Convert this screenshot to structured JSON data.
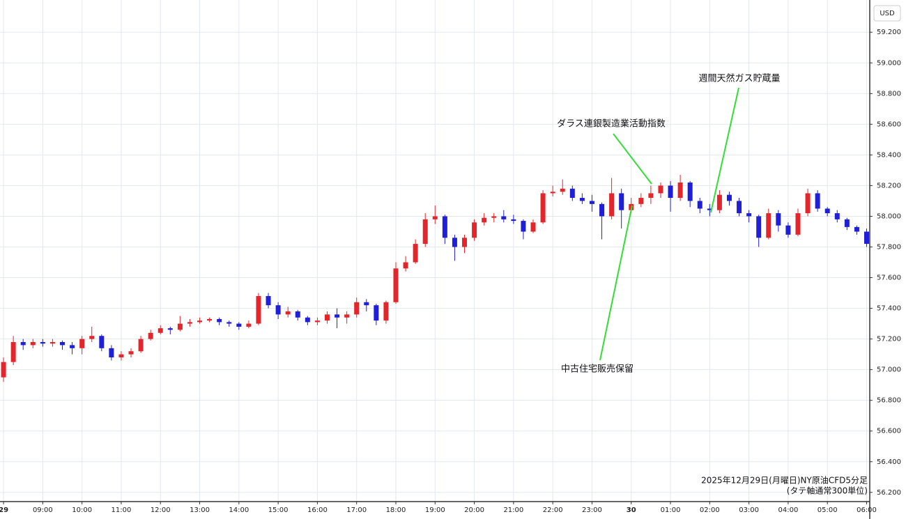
{
  "chart_data": {
    "type": "candlestick",
    "title": "2025年12月29日(月曜日)NY原油CFD5分足",
    "subtitle": "(タテ軸通常300単位)",
    "currency": "USD",
    "up_color": "#e3262b",
    "down_color": "#1f1fd8",
    "grid": true,
    "xlim": [
      -0.09,
      22.08
    ],
    "ylim": [
      56.14,
      59.41
    ],
    "xticks": [
      {
        "value": 0,
        "label": "29"
      },
      {
        "value": 1,
        "label": "09:00"
      },
      {
        "value": 2,
        "label": "10:00"
      },
      {
        "value": 3,
        "label": "11:00"
      },
      {
        "value": 4,
        "label": "12:00"
      },
      {
        "value": 5,
        "label": "13:00"
      },
      {
        "value": 6,
        "label": "14:00"
      },
      {
        "value": 7,
        "label": "15:00"
      },
      {
        "value": 8,
        "label": "16:00"
      },
      {
        "value": 9,
        "label": "17:00"
      },
      {
        "value": 10,
        "label": "18:00"
      },
      {
        "value": 11,
        "label": "19:00"
      },
      {
        "value": 12,
        "label": "20:00"
      },
      {
        "value": 13,
        "label": "21:00"
      },
      {
        "value": 14,
        "label": "22:00"
      },
      {
        "value": 15,
        "label": "23:00"
      },
      {
        "value": 16,
        "label": "30"
      },
      {
        "value": 17,
        "label": "01:00"
      },
      {
        "value": 18,
        "label": "02:00"
      },
      {
        "value": 19,
        "label": "03:00"
      },
      {
        "value": 20,
        "label": "04:00"
      },
      {
        "value": 21,
        "label": "05:00"
      },
      {
        "value": 22,
        "label": "06:00"
      }
    ],
    "yticks": [
      {
        "value": 56.2,
        "label": "56.200"
      },
      {
        "value": 56.4,
        "label": "56.400"
      },
      {
        "value": 56.6,
        "label": "56.600"
      },
      {
        "value": 56.8,
        "label": "56.800"
      },
      {
        "value": 57.0,
        "label": "57.000"
      },
      {
        "value": 57.2,
        "label": "57.200"
      },
      {
        "value": 57.4,
        "label": "57.400"
      },
      {
        "value": 57.6,
        "label": "57.600"
      },
      {
        "value": 57.8,
        "label": "57.800"
      },
      {
        "value": 58.0,
        "label": "58.000"
      },
      {
        "value": 58.2,
        "label": "58.200"
      },
      {
        "value": 58.4,
        "label": "58.400"
      },
      {
        "value": 58.6,
        "label": "58.600"
      },
      {
        "value": 58.8,
        "label": "58.800"
      },
      {
        "value": 59.0,
        "label": "59.000"
      },
      {
        "value": 59.2,
        "label": "59.200"
      }
    ],
    "x": [
      0,
      0.25,
      0.5,
      0.75,
      1,
      1.25,
      1.5,
      1.75,
      2,
      2.25,
      2.5,
      2.75,
      3,
      3.25,
      3.5,
      3.75,
      4,
      4.25,
      4.5,
      4.75,
      5,
      5.25,
      5.5,
      5.75,
      6,
      6.25,
      6.5,
      6.75,
      7,
      7.25,
      7.5,
      7.75,
      8,
      8.25,
      8.5,
      8.75,
      9,
      9.25,
      9.5,
      9.75,
      10,
      10.25,
      10.5,
      10.75,
      11,
      11.25,
      11.5,
      11.75,
      12,
      12.25,
      12.5,
      12.75,
      13,
      13.25,
      13.5,
      13.75,
      14,
      14.25,
      14.5,
      14.75,
      15,
      15.25,
      15.5,
      15.75,
      16,
      16.25,
      16.5,
      16.75,
      17,
      17.25,
      17.5,
      17.75,
      18,
      18.25,
      18.5,
      18.75,
      19,
      19.25,
      19.5,
      19.75,
      20,
      20.25,
      20.5,
      20.75,
      21,
      21.25,
      21.5,
      21.75,
      22
    ],
    "open": [
      56.95,
      57.05,
      57.18,
      57.16,
      57.18,
      57.17,
      57.18,
      57.16,
      57.14,
      57.2,
      57.22,
      57.14,
      57.08,
      57.1,
      57.12,
      57.2,
      57.24,
      57.27,
      57.26,
      57.3,
      57.31,
      57.32,
      57.33,
      57.31,
      57.3,
      57.28,
      57.3,
      57.48,
      57.42,
      57.36,
      57.38,
      57.34,
      57.31,
      57.32,
      57.36,
      57.34,
      57.36,
      57.44,
      57.42,
      57.32,
      57.44,
      57.66,
      57.7,
      57.82,
      57.98,
      58.0,
      57.86,
      57.8,
      57.86,
      57.96,
      57.99,
      58.0,
      57.98,
      57.97,
      57.9,
      57.96,
      58.15,
      58.16,
      58.18,
      58.12,
      58.1,
      58.08,
      58.0,
      58.15,
      58.04,
      58.08,
      58.12,
      58.15,
      58.2,
      58.12,
      58.22,
      58.1,
      58.05,
      58.04,
      58.14,
      58.1,
      58.02,
      58.0,
      57.86,
      58.02,
      57.94,
      57.88,
      58.02,
      58.15,
      58.05,
      58.02,
      57.98,
      57.93,
      57.9
    ],
    "high": [
      57.08,
      57.22,
      57.2,
      57.2,
      57.2,
      57.2,
      57.19,
      57.18,
      57.22,
      57.28,
      57.23,
      57.16,
      57.12,
      57.14,
      57.22,
      57.26,
      57.29,
      57.28,
      57.35,
      57.33,
      57.34,
      57.34,
      57.34,
      57.32,
      57.31,
      57.32,
      57.5,
      57.5,
      57.44,
      57.41,
      57.39,
      57.35,
      57.34,
      57.38,
      57.4,
      57.38,
      57.47,
      57.46,
      57.43,
      57.45,
      57.7,
      57.74,
      57.85,
      58.02,
      58.07,
      58.01,
      57.88,
      57.88,
      57.98,
      58.02,
      58.02,
      58.04,
      58.01,
      57.98,
      57.98,
      58.17,
      58.2,
      58.24,
      58.2,
      58.15,
      58.14,
      58.09,
      58.25,
      58.18,
      58.12,
      58.15,
      58.2,
      58.22,
      58.23,
      58.27,
      58.23,
      58.12,
      58.08,
      58.17,
      58.16,
      58.12,
      58.04,
      58.01,
      58.05,
      58.04,
      57.96,
      58.05,
      58.18,
      58.17,
      58.06,
      58.04,
      57.99,
      57.94,
      57.92
    ],
    "low": [
      56.92,
      57.03,
      57.13,
      57.14,
      57.15,
      57.15,
      57.13,
      57.1,
      57.1,
      57.18,
      57.12,
      57.06,
      57.06,
      57.08,
      57.11,
      57.19,
      57.23,
      57.23,
      57.25,
      57.28,
      57.3,
      57.31,
      57.29,
      57.28,
      57.26,
      57.27,
      57.29,
      57.4,
      57.33,
      57.34,
      57.32,
      57.29,
      57.29,
      57.3,
      57.27,
      57.3,
      57.34,
      57.38,
      57.29,
      57.3,
      57.43,
      57.64,
      57.69,
      57.8,
      57.95,
      57.82,
      57.71,
      57.76,
      57.84,
      57.94,
      57.96,
      57.96,
      57.95,
      57.85,
      57.89,
      57.95,
      58.13,
      58.14,
      58.1,
      58.08,
      58.03,
      57.85,
      57.98,
      57.92,
      58.02,
      58.06,
      58.08,
      58.12,
      58.03,
      58.1,
      58.06,
      58.02,
      58.0,
      58.02,
      58.07,
      58.0,
      57.96,
      57.8,
      57.85,
      57.9,
      57.86,
      57.87,
      58.0,
      58.03,
      58.0,
      57.96,
      57.91,
      57.88,
      57.8
    ],
    "close": [
      57.05,
      57.18,
      57.16,
      57.18,
      57.17,
      57.18,
      57.16,
      57.14,
      57.2,
      57.22,
      57.14,
      57.08,
      57.1,
      57.12,
      57.2,
      57.24,
      57.27,
      57.26,
      57.3,
      57.31,
      57.32,
      57.33,
      57.31,
      57.3,
      57.28,
      57.3,
      57.48,
      57.42,
      57.36,
      57.38,
      57.34,
      57.31,
      57.32,
      57.36,
      57.34,
      57.36,
      57.44,
      57.42,
      57.32,
      57.44,
      57.66,
      57.7,
      57.82,
      57.98,
      58.0,
      57.86,
      57.8,
      57.86,
      57.96,
      57.99,
      58.0,
      57.98,
      57.97,
      57.9,
      57.96,
      58.15,
      58.16,
      58.18,
      58.12,
      58.1,
      58.08,
      58.0,
      58.15,
      58.04,
      58.08,
      58.12,
      58.15,
      58.2,
      58.12,
      58.22,
      58.1,
      58.05,
      58.04,
      58.14,
      58.1,
      58.02,
      58.0,
      57.86,
      58.02,
      57.94,
      57.88,
      58.02,
      58.15,
      58.05,
      58.02,
      57.98,
      57.93,
      57.9,
      57.82
    ],
    "annotations": [
      {
        "text": "ダラス連銀製造業活動指数"
      },
      {
        "text": "週間天然ガス貯蔵量"
      },
      {
        "text": "中古住宅販売保留"
      }
    ]
  }
}
